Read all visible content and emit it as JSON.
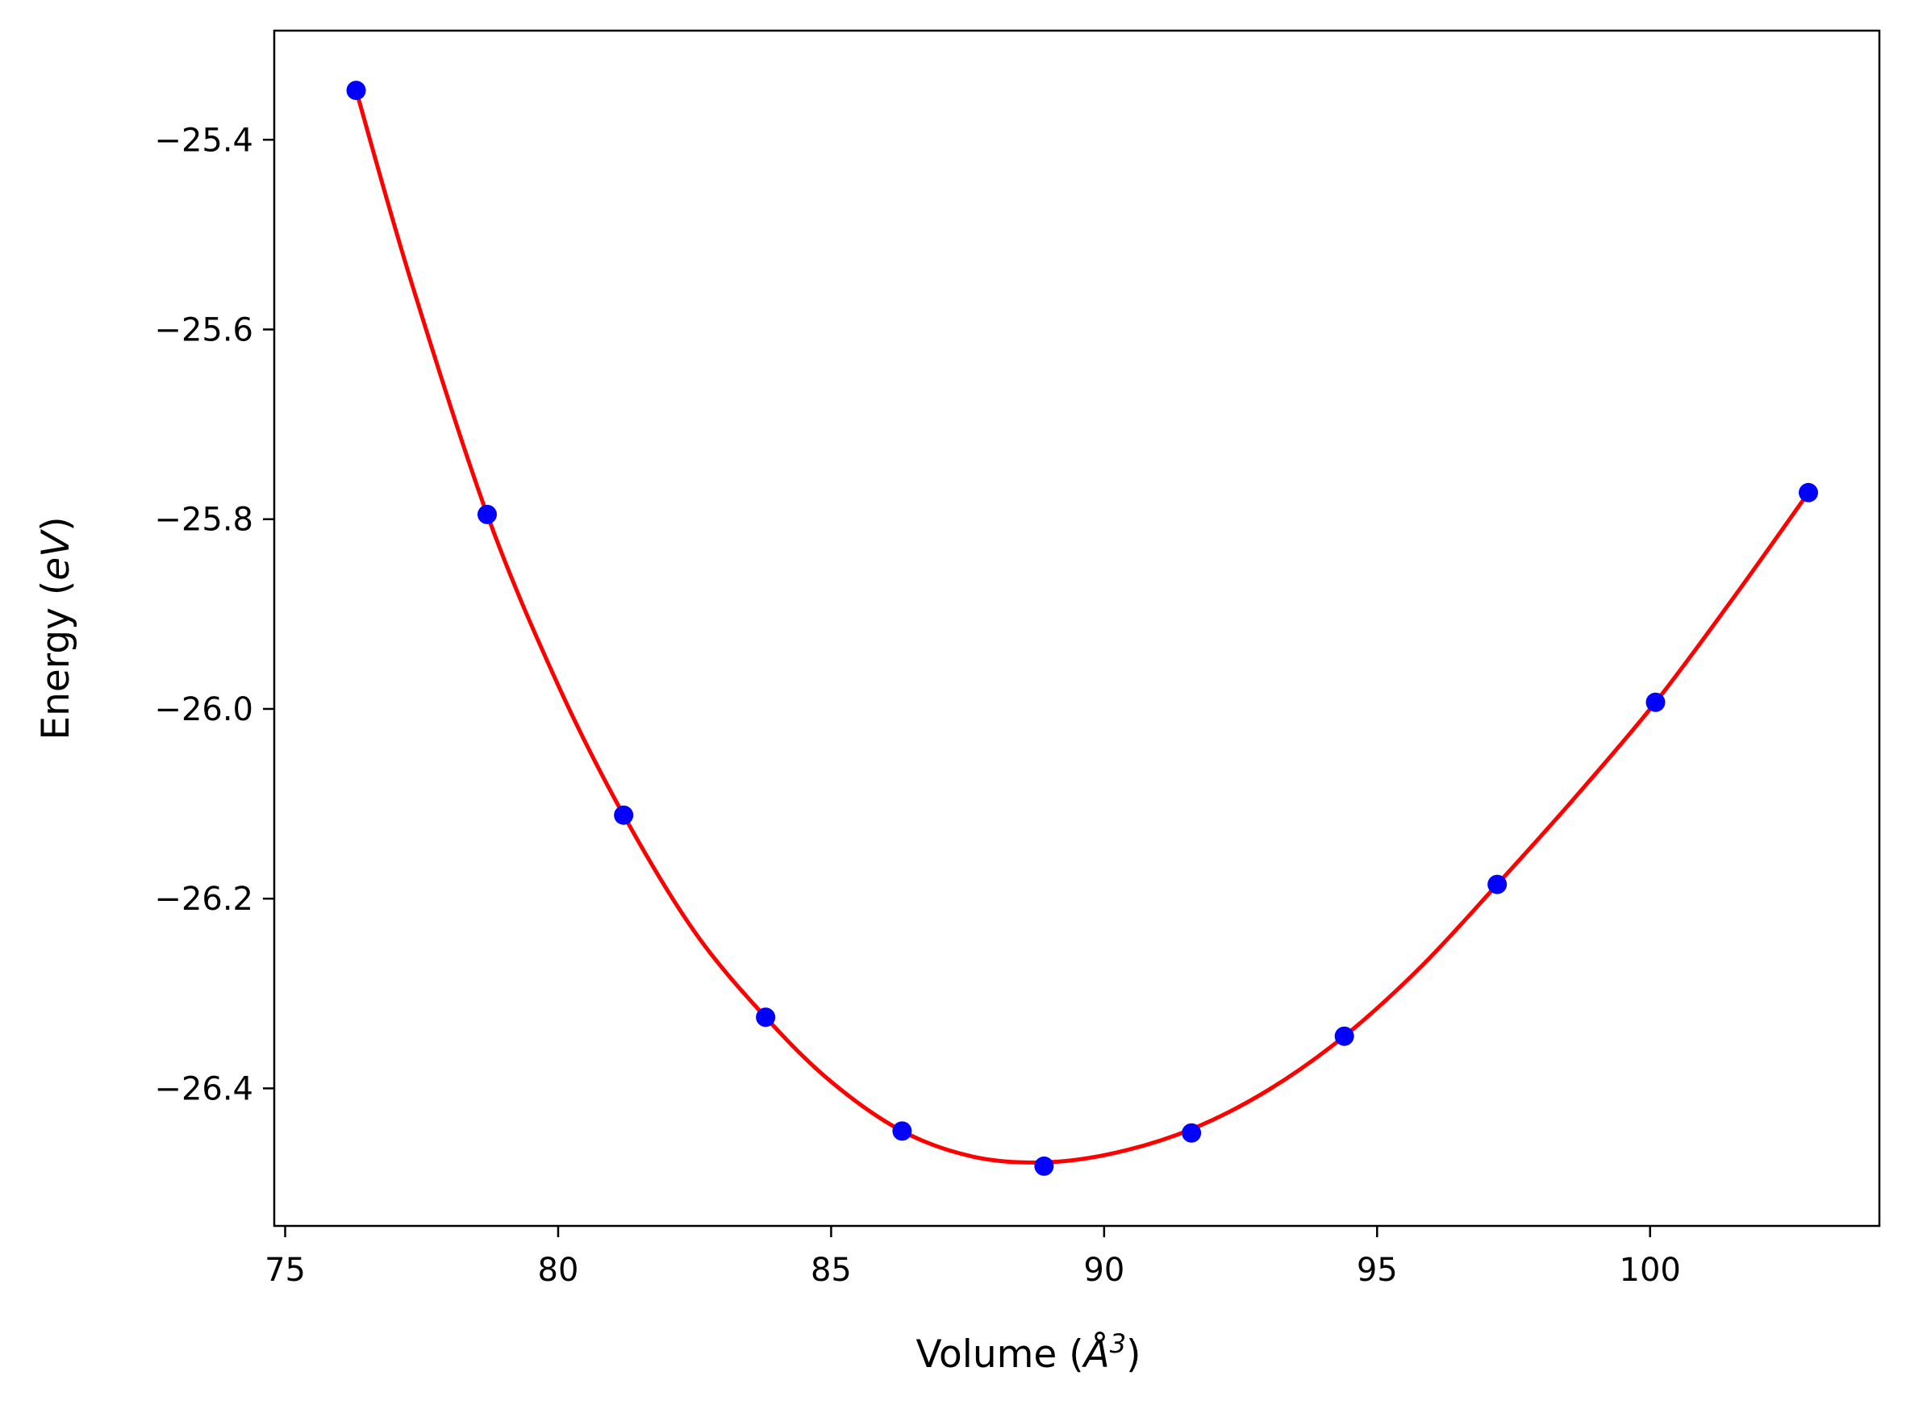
{
  "chart_data": {
    "type": "scatter",
    "title": "",
    "xlabel": {
      "prefix": "Volume (",
      "symbol": "Å",
      "sup": "3",
      "suffix": ")"
    },
    "ylabel": {
      "prefix": "Energy (",
      "symbol": "eV",
      "suffix": ")"
    },
    "xlim": [
      74.8,
      104.2
    ],
    "ylim": [
      -26.545,
      -25.285
    ],
    "xticks": [
      75,
      80,
      85,
      90,
      95,
      100
    ],
    "yticks": [
      -25.4,
      -25.6,
      -25.8,
      -26.0,
      -26.2,
      -26.4
    ],
    "ytick_labels": [
      "−25.4",
      "−25.6",
      "−25.8",
      "−26.0",
      "−26.2",
      "−26.4"
    ],
    "grid": false,
    "series": [
      {
        "kind": "points",
        "color": "#0000ff",
        "x": [
          76.3,
          78.7,
          81.2,
          83.8,
          86.3,
          88.9,
          91.6,
          94.4,
          97.2,
          100.1,
          102.9
        ],
        "y": [
          -25.348,
          -25.795,
          -26.112,
          -26.325,
          -26.445,
          -26.482,
          -26.447,
          -26.345,
          -26.185,
          -25.993,
          -25.772
        ]
      },
      {
        "kind": "fit-line",
        "color": "#ff0000",
        "x": [
          76.3,
          77.3,
          78.7,
          80.0,
          81.2,
          82.5,
          83.8,
          85.0,
          86.3,
          87.6,
          88.9,
          90.2,
          91.6,
          93.0,
          94.4,
          95.8,
          97.2,
          98.6,
          100.1,
          101.5,
          102.9
        ],
        "y": [
          -25.348,
          -25.548,
          -25.795,
          -25.975,
          -26.112,
          -26.235,
          -26.325,
          -26.393,
          -26.445,
          -26.472,
          -26.478,
          -26.468,
          -26.443,
          -26.402,
          -26.345,
          -26.272,
          -26.185,
          -26.095,
          -25.993,
          -25.885,
          -25.772
        ]
      }
    ]
  }
}
